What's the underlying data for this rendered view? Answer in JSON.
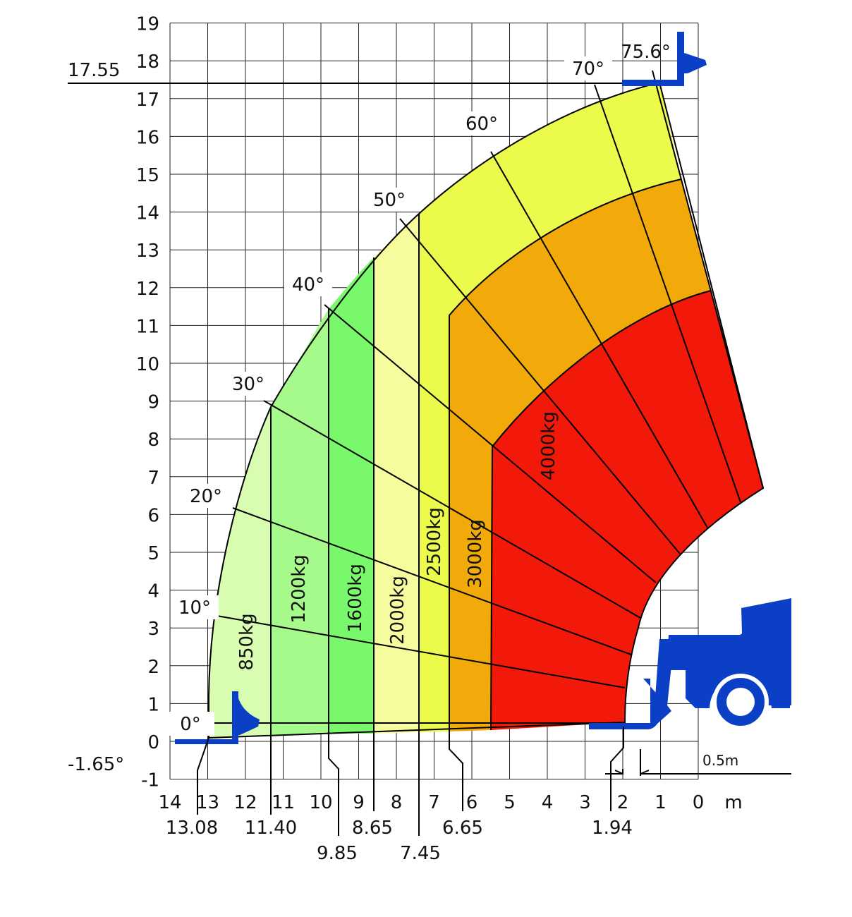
{
  "chart_data": {
    "type": "load-chart",
    "x_unit": "m",
    "xlim": [
      0,
      14
    ],
    "ylim": [
      -1,
      19
    ],
    "x_ticks": [
      14,
      13,
      12,
      11,
      10,
      9,
      8,
      7,
      6,
      5,
      4,
      3,
      2,
      1,
      0
    ],
    "y_ticks": [
      19,
      18,
      17,
      16,
      15,
      14,
      13,
      12,
      11,
      10,
      9,
      8,
      7,
      6,
      5,
      4,
      3,
      2,
      1,
      0,
      -1
    ],
    "max_height": "17.55",
    "min_angle": "-1.65°",
    "max_angle": "75.6°",
    "boom_angles": [
      "0°",
      "10°",
      "20°",
      "30°",
      "40°",
      "50°",
      "60°",
      "70°"
    ],
    "boundary_callouts": [
      "13.08",
      "11.40",
      "9.85",
      "8.65",
      "7.45",
      "6.65",
      "1.94"
    ],
    "scale_label": "0.5m",
    "zones": [
      {
        "capacity": "850kg",
        "x_from": 13.08,
        "x_to": 11.4,
        "color": "#d8fcb0"
      },
      {
        "capacity": "1200kg",
        "x_from": 11.4,
        "x_to": 9.85,
        "color": "#a6fa8c"
      },
      {
        "capacity": "1600kg",
        "x_from": 9.85,
        "x_to": 8.65,
        "color": "#78f86a"
      },
      {
        "capacity": "2000kg",
        "x_from": 8.65,
        "x_to": 7.45,
        "color": "#f6fc9e"
      },
      {
        "capacity": "2500kg",
        "x_from": 7.45,
        "x_to": 6.65,
        "color": "#ecfa4c"
      },
      {
        "capacity": "3000kg",
        "color": "#f2aa0a"
      },
      {
        "capacity": "4000kg",
        "color": "#f2180a"
      }
    ],
    "colors": {
      "machine": "#0a3fc6",
      "outline": "#000000"
    }
  }
}
